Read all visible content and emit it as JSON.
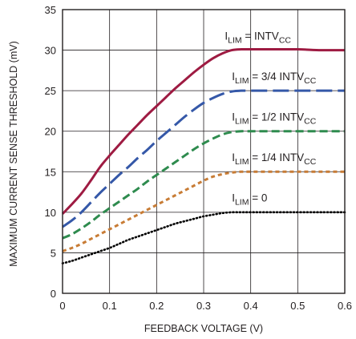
{
  "chart_data": {
    "type": "line",
    "xlabel": "FEEDBACK VOLTAGE (V)",
    "ylabel": "MAXIMUM CURRENT SENSE THRESHOLD (mV)",
    "xlim": [
      0,
      0.6
    ],
    "ylim": [
      0,
      35
    ],
    "x_ticks": [
      "0",
      "0.1",
      "0.2",
      "0.3",
      "0.4",
      "0.5",
      "0.6"
    ],
    "y_ticks": [
      "0",
      "5",
      "10",
      "15",
      "20",
      "25",
      "30",
      "35"
    ],
    "grid": true,
    "legend": "inline labels",
    "series": [
      {
        "name": "ILIM = INTVCC",
        "name_parts": {
          "main1": "I",
          "sub1": "LIM",
          "main2": " = INTV",
          "sub2": "CC"
        },
        "color": "#9e1b42",
        "style": "solid",
        "x": [
          0,
          0.02,
          0.04,
          0.06,
          0.08,
          0.1,
          0.12,
          0.14,
          0.16,
          0.18,
          0.2,
          0.22,
          0.24,
          0.26,
          0.28,
          0.3,
          0.32,
          0.34,
          0.36,
          0.38,
          0.4,
          0.45,
          0.5,
          0.55,
          0.6
        ],
        "y": [
          9.8,
          11.0,
          12.3,
          13.9,
          15.6,
          17.0,
          18.3,
          19.6,
          20.8,
          22.0,
          23.1,
          24.2,
          25.3,
          26.3,
          27.3,
          28.2,
          29.0,
          29.6,
          30.0,
          30.1,
          30.1,
          30.1,
          30.1,
          30.0,
          30.0
        ]
      },
      {
        "name": "ILIM = 3/4 INTVCC",
        "name_parts": {
          "main1": "I",
          "sub1": "LIM",
          "main2": " = 3/4 INTV",
          "sub2": "CC"
        },
        "color": "#3558a8",
        "style": "longdash",
        "x": [
          0,
          0.02,
          0.04,
          0.06,
          0.08,
          0.1,
          0.12,
          0.14,
          0.16,
          0.18,
          0.2,
          0.22,
          0.24,
          0.26,
          0.28,
          0.3,
          0.32,
          0.34,
          0.36,
          0.38,
          0.4,
          0.45,
          0.5,
          0.55,
          0.6
        ],
        "y": [
          8.2,
          9.0,
          10.0,
          11.2,
          12.4,
          13.5,
          14.6,
          15.6,
          16.7,
          17.7,
          18.8,
          19.8,
          20.8,
          21.8,
          22.7,
          23.5,
          24.1,
          24.6,
          24.9,
          25.0,
          25.0,
          25.0,
          25.0,
          25.0,
          25.0
        ]
      },
      {
        "name": "ILIM = 1/2 INTVCC",
        "name_parts": {
          "main1": "I",
          "sub1": "LIM",
          "main2": " = 1/2 INTV",
          "sub2": "CC"
        },
        "color": "#2e8b4e",
        "style": "dash",
        "x": [
          0,
          0.02,
          0.04,
          0.06,
          0.08,
          0.1,
          0.12,
          0.14,
          0.16,
          0.18,
          0.2,
          0.22,
          0.24,
          0.26,
          0.28,
          0.3,
          0.32,
          0.34,
          0.36,
          0.38,
          0.4,
          0.45,
          0.5,
          0.55,
          0.6
        ],
        "y": [
          6.8,
          7.3,
          8.0,
          8.8,
          9.7,
          10.5,
          11.3,
          12.1,
          12.9,
          13.8,
          14.6,
          15.4,
          16.2,
          17.0,
          17.8,
          18.5,
          19.1,
          19.6,
          19.9,
          20.0,
          20.0,
          20.0,
          20.0,
          20.0,
          20.0
        ]
      },
      {
        "name": "ILIM = 1/4 INTVCC",
        "name_parts": {
          "main1": "I",
          "sub1": "LIM",
          "main2": " = 1/4 INTV",
          "sub2": "CC"
        },
        "color": "#c87c35",
        "style": "shortdash",
        "x": [
          0,
          0.02,
          0.04,
          0.06,
          0.08,
          0.1,
          0.12,
          0.14,
          0.16,
          0.18,
          0.2,
          0.22,
          0.24,
          0.26,
          0.28,
          0.3,
          0.32,
          0.34,
          0.36,
          0.38,
          0.4,
          0.45,
          0.5,
          0.55,
          0.6
        ],
        "y": [
          5.2,
          5.6,
          6.1,
          6.7,
          7.3,
          7.9,
          8.5,
          9.1,
          9.7,
          10.3,
          10.9,
          11.5,
          12.1,
          12.7,
          13.3,
          13.9,
          14.4,
          14.7,
          14.9,
          15.0,
          15.0,
          15.0,
          15.0,
          15.0,
          15.0
        ]
      },
      {
        "name": "ILIM = 0",
        "name_parts": {
          "main1": "I",
          "sub1": "LIM",
          "main2": " = 0",
          "sub2": ""
        },
        "color": "#000000",
        "style": "dotted",
        "x": [
          0,
          0.02,
          0.04,
          0.06,
          0.08,
          0.1,
          0.12,
          0.14,
          0.16,
          0.18,
          0.2,
          0.22,
          0.24,
          0.26,
          0.28,
          0.3,
          0.32,
          0.34,
          0.36,
          0.38,
          0.4,
          0.45,
          0.5,
          0.55,
          0.6
        ],
        "y": [
          3.7,
          4.0,
          4.4,
          4.8,
          5.2,
          5.6,
          6.1,
          6.6,
          7.0,
          7.4,
          7.8,
          8.2,
          8.6,
          8.9,
          9.2,
          9.5,
          9.7,
          9.9,
          10.0,
          10.0,
          10.0,
          10.0,
          10.0,
          10.0,
          10.0
        ]
      }
    ]
  }
}
